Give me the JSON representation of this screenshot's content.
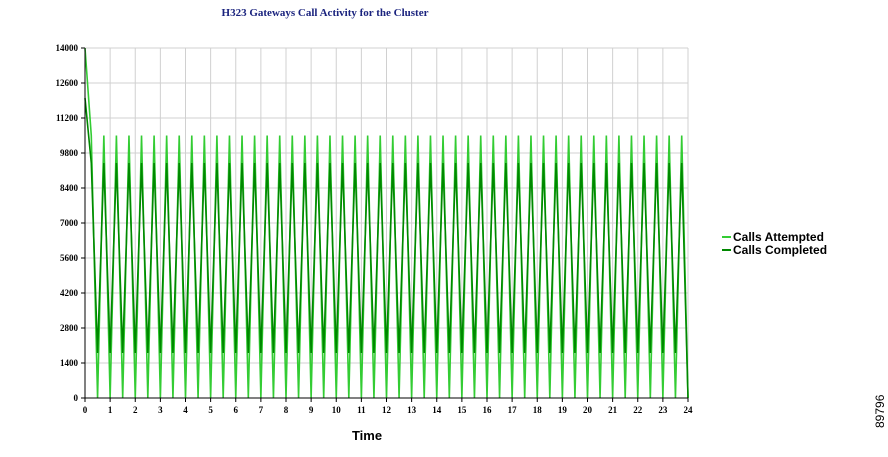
{
  "chart_data": {
    "type": "line",
    "title": "H323 Gateways Call Activity for the Cluster",
    "x_label": "Time",
    "figure_id": "89796",
    "x": [
      0,
      0.25,
      0.5,
      0.75,
      1,
      1.25,
      1.5,
      1.75,
      2,
      2.25,
      2.5,
      2.75,
      3,
      3.25,
      3.5,
      3.75,
      4,
      4.25,
      4.5,
      4.75,
      5,
      5.25,
      5.5,
      5.75,
      6,
      6.25,
      6.5,
      6.75,
      7,
      7.25,
      7.5,
      7.75,
      8,
      8.25,
      8.5,
      8.75,
      9,
      9.25,
      9.5,
      9.75,
      10,
      10.25,
      10.5,
      10.75,
      11,
      11.25,
      11.5,
      11.75,
      12,
      12.25,
      12.5,
      12.75,
      13,
      13.25,
      13.5,
      13.75,
      14,
      14.25,
      14.5,
      14.75,
      15,
      15.25,
      15.5,
      15.75,
      16,
      16.25,
      16.5,
      16.75,
      17,
      17.25,
      17.5,
      17.75,
      18,
      18.25,
      18.5,
      18.75,
      19,
      19.25,
      19.5,
      19.75,
      20,
      20.25,
      20.5,
      20.75,
      21,
      21.25,
      21.5,
      21.75,
      22,
      22.25,
      22.5,
      22.75,
      23,
      23.25,
      23.5,
      23.75,
      24
    ],
    "series": [
      {
        "name": "Calls Attempted",
        "color": "#33cc33",
        "values": [
          14000,
          10500,
          0,
          10500,
          0,
          10500,
          0,
          10500,
          0,
          10500,
          0,
          10500,
          0,
          10500,
          0,
          10500,
          0,
          10500,
          0,
          10500,
          0,
          10500,
          0,
          10500,
          0,
          10500,
          0,
          10500,
          0,
          10500,
          0,
          10500,
          0,
          10500,
          0,
          10500,
          0,
          10500,
          0,
          10500,
          0,
          10500,
          0,
          10500,
          0,
          10500,
          0,
          10500,
          0,
          10500,
          0,
          10500,
          0,
          10500,
          0,
          10500,
          0,
          10500,
          0,
          10500,
          0,
          10500,
          0,
          10500,
          0,
          10500,
          0,
          10500,
          0,
          10500,
          0,
          10500,
          0,
          10500,
          0,
          10500,
          0,
          10500,
          0,
          10500,
          0,
          10500,
          0,
          10500,
          0,
          10500,
          0,
          10500,
          0,
          10500,
          0,
          10500,
          0,
          10500,
          0,
          10500,
          0
        ]
      },
      {
        "name": "Calls Completed",
        "color": "#008800",
        "values": [
          12000,
          9400,
          1800,
          9400,
          1800,
          9400,
          1800,
          9400,
          1800,
          9400,
          1800,
          9400,
          1800,
          9400,
          1800,
          9400,
          1800,
          9400,
          1800,
          9400,
          1800,
          9400,
          1800,
          9400,
          1800,
          9400,
          1800,
          9400,
          1800,
          9400,
          1800,
          9400,
          1800,
          9400,
          1800,
          9400,
          1800,
          9400,
          1800,
          9400,
          1800,
          9400,
          1800,
          9400,
          1800,
          9400,
          1800,
          9400,
          1800,
          9400,
          1800,
          9400,
          1800,
          9400,
          1800,
          9400,
          1800,
          9400,
          1800,
          9400,
          1800,
          9400,
          1800,
          9400,
          1800,
          9400,
          1800,
          9400,
          1800,
          9400,
          1800,
          9400,
          1800,
          9400,
          1800,
          9400,
          1800,
          9400,
          1800,
          9400,
          1800,
          9400,
          1800,
          9400,
          1800,
          9400,
          1800,
          9400,
          1800,
          9400,
          1800,
          9400,
          1800,
          9400,
          1800,
          9400,
          0
        ]
      }
    ],
    "xlim": [
      0,
      24
    ],
    "xticks": [
      0,
      1,
      2,
      3,
      4,
      5,
      6,
      7,
      8,
      9,
      10,
      11,
      12,
      13,
      14,
      15,
      16,
      17,
      18,
      19,
      20,
      21,
      22,
      23,
      24
    ],
    "ylim": [
      0,
      14000
    ],
    "yticks": [
      0,
      1400,
      2800,
      4200,
      5600,
      7000,
      8400,
      9800,
      11200,
      12600,
      14000
    ],
    "grid": true,
    "legend": "right"
  }
}
